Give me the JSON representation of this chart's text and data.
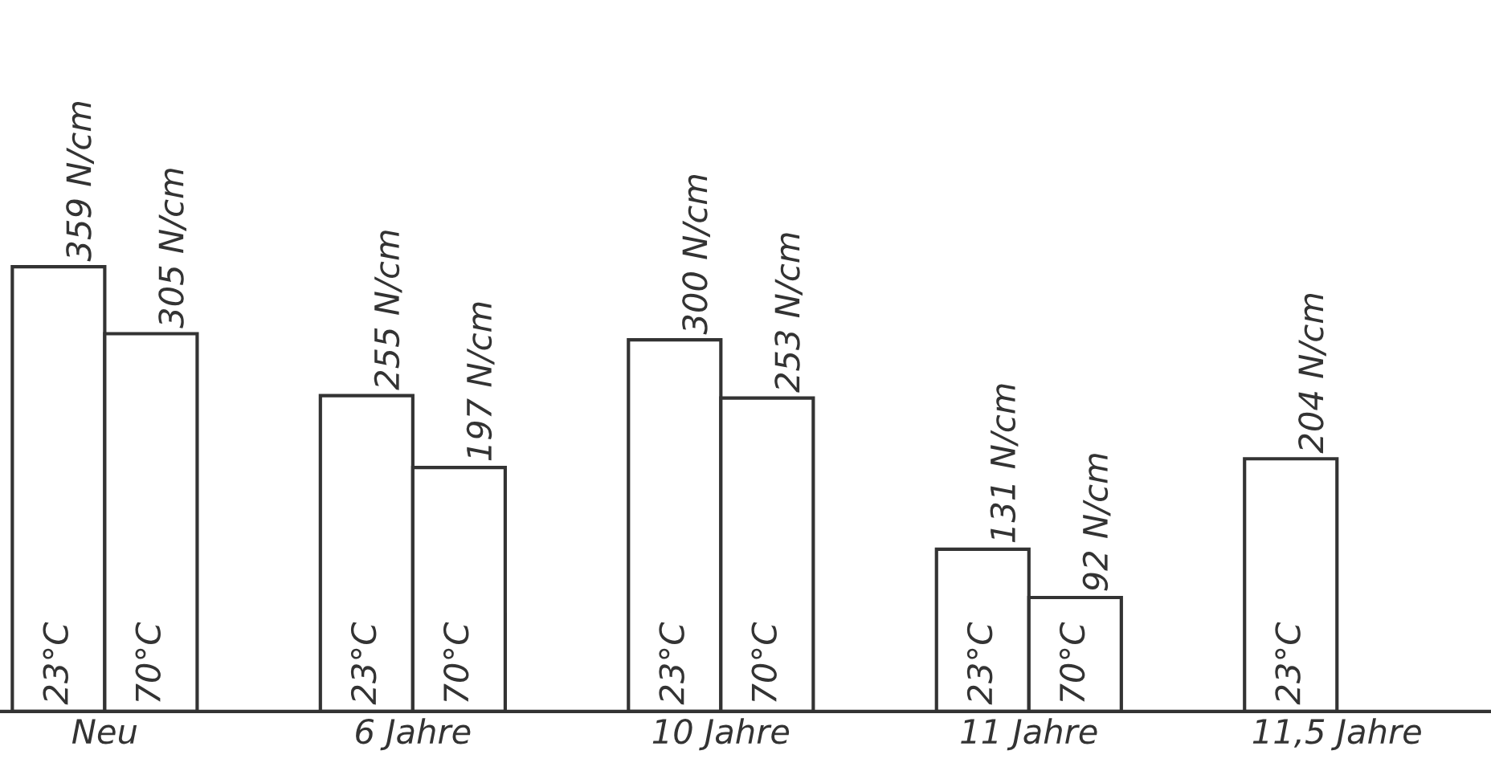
{
  "chart_data": {
    "type": "bar",
    "categories": [
      "Neu",
      "6 Jahre",
      "10 Jahre",
      "11 Jahre",
      "11,5 Jahre"
    ],
    "series": [
      {
        "name": "23°C",
        "color": "#ffffff",
        "values": [
          359,
          255,
          300,
          131,
          204
        ],
        "value_labels": [
          "359 N/cm",
          "255 N/cm",
          "300 N/cm",
          "131 N/cm",
          "204 N/cm"
        ]
      },
      {
        "name": "70°C",
        "color": "#ffffff",
        "values": [
          305,
          197,
          253,
          92,
          null
        ],
        "value_labels": [
          "305 N/cm",
          "197 N/cm",
          "253 N/cm",
          "92 N/cm",
          null
        ]
      }
    ],
    "legend": false,
    "grid": false
  }
}
